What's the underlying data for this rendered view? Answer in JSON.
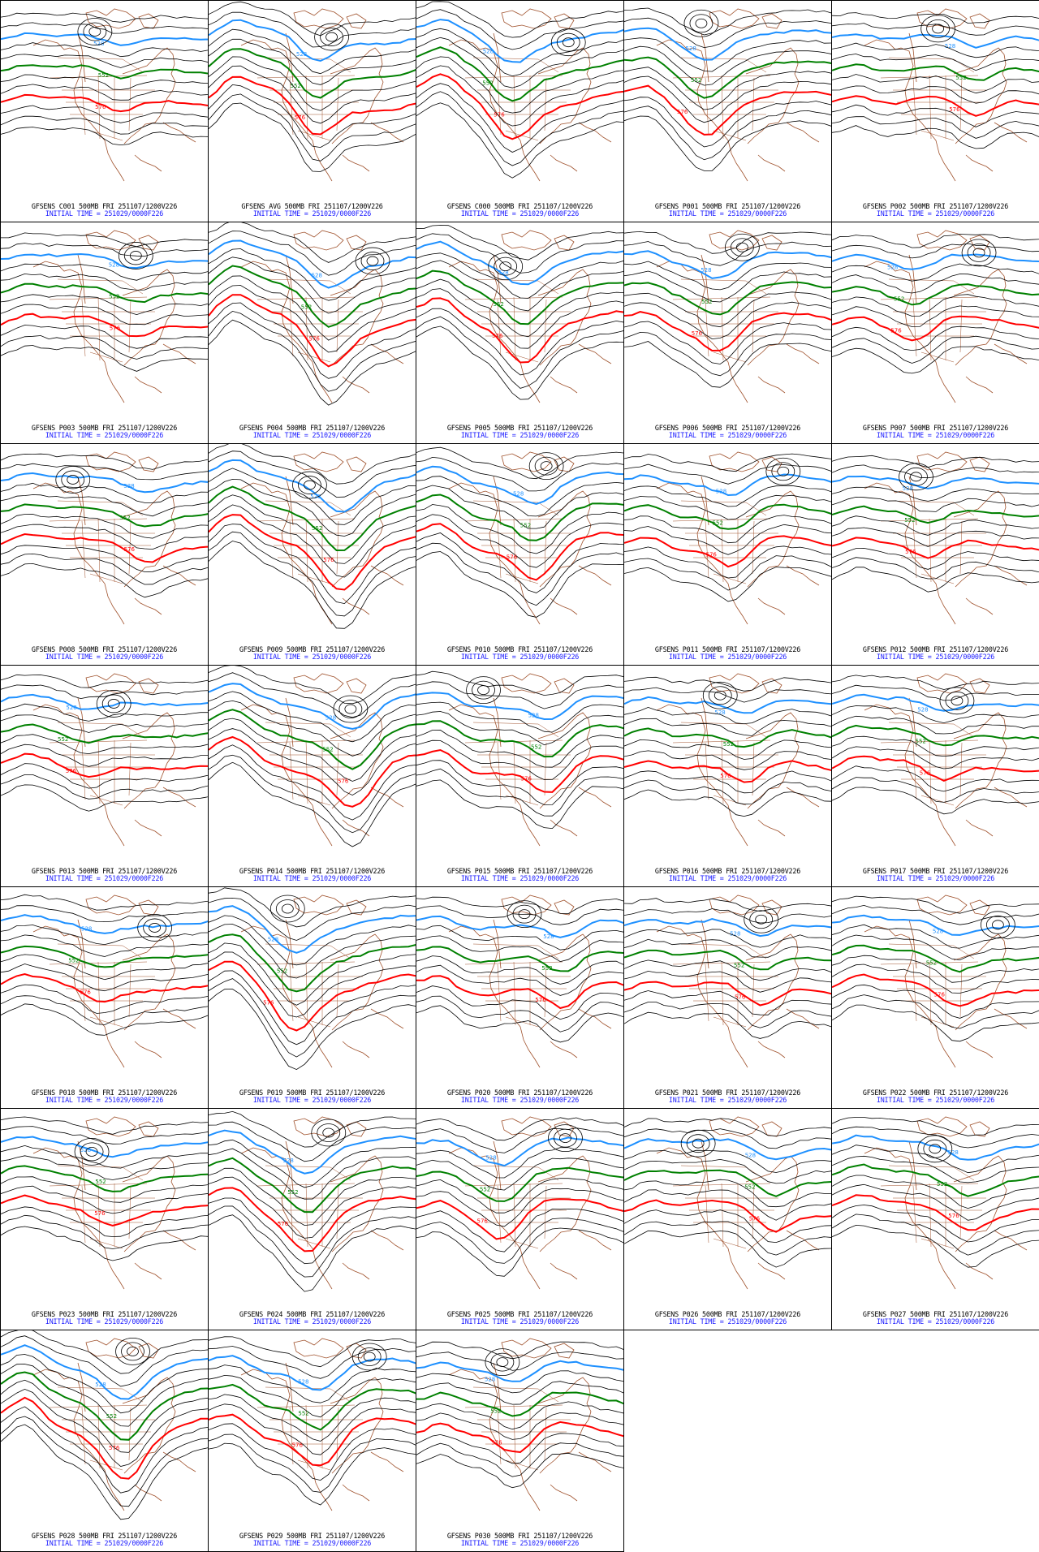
{
  "colors": {
    "contour": "#000000",
    "contour_528": "#1e90ff",
    "contour_552": "#008000",
    "contour_576": "#ff0000",
    "coast": "#a0522d",
    "caption_line1": "#000000",
    "caption_line2": "#1a1aff"
  },
  "contour_labels": {
    "blue": "528",
    "green": "552",
    "red": "576"
  },
  "icons": {
    "map": "map-icon"
  },
  "panels": [
    {
      "line1": "GFSENS C001 500MB FRI 251107/1200V226",
      "line2": "INITIAL TIME = 251029/0000F226"
    },
    {
      "line1": "GFSENS AVG 500MB FRI 251107/1200V226",
      "line2": "INITIAL TIME = 251029/0000F226"
    },
    {
      "line1": "GFSENS C000 500MB FRI 251107/1200V226",
      "line2": "INITIAL TIME = 251029/0000F226"
    },
    {
      "line1": "GFSENS P001 500MB FRI 251107/1200V226",
      "line2": "INITIAL TIME = 251029/0000F226"
    },
    {
      "line1": "GFSENS P002 500MB FRI 251107/1200V226",
      "line2": "INITIAL TIME = 251029/0000F226"
    },
    {
      "line1": "GFSENS P003 500MB FRI 251107/1200V226",
      "line2": "INITIAL TIME = 251029/0000F226"
    },
    {
      "line1": "GFSENS P004 500MB FRI 251107/1200V226",
      "line2": "INITIAL TIME = 251029/0000F226"
    },
    {
      "line1": "GFSENS P005 500MB FRI 251107/1200V226",
      "line2": "INITIAL TIME = 251029/0000F226"
    },
    {
      "line1": "GFSENS P006 500MB FRI 251107/1200V226",
      "line2": "INITIAL TIME = 251029/0000F226"
    },
    {
      "line1": "GFSENS P007 500MB FRI 251107/1200V226",
      "line2": "INITIAL TIME = 251029/0000F226"
    },
    {
      "line1": "GFSENS P008 500MB FRI 251107/1200V226",
      "line2": "INITIAL TIME = 251029/0000F226"
    },
    {
      "line1": "GFSENS P009 500MB FRI 251107/1200V226",
      "line2": "INITIAL TIME = 251029/0000F226"
    },
    {
      "line1": "GFSENS P010 500MB FRI 251107/1200V226",
      "line2": "INITIAL TIME = 251029/0000F226"
    },
    {
      "line1": "GFSENS P011 500MB FRI 251107/1200V226",
      "line2": "INITIAL TIME = 251029/0000F226"
    },
    {
      "line1": "GFSENS P012 500MB FRI 251107/1200V226",
      "line2": "INITIAL TIME = 251029/0000F226"
    },
    {
      "line1": "GFSENS P013 500MB FRI 251107/1200V226",
      "line2": "INITIAL TIME = 251029/0000F226"
    },
    {
      "line1": "GFSENS P014 500MB FRI 251107/1200V226",
      "line2": "INITIAL TIME = 251029/0000F226"
    },
    {
      "line1": "GFSENS P015 500MB FRI 251107/1200V226",
      "line2": "INITIAL TIME = 251029/0000F226"
    },
    {
      "line1": "GFSENS P016 500MB FRI 251107/1200V226",
      "line2": "INITIAL TIME = 251029/0000F226"
    },
    {
      "line1": "GFSENS P017 500MB FRI 251107/1200V226",
      "line2": "INITIAL TIME = 251029/0000F226"
    },
    {
      "line1": "GFSENS P018 500MB FRI 251107/1200V226",
      "line2": "INITIAL TIME = 251029/0000F226"
    },
    {
      "line1": "GFSENS P019 500MB FRI 251107/1200V226",
      "line2": "INITIAL TIME = 251029/0000F226"
    },
    {
      "line1": "GFSENS P020 500MB FRI 251107/1200V226",
      "line2": "INITIAL TIME = 251029/0000F226"
    },
    {
      "line1": "GFSENS P021 500MB FRI 251107/1200V226",
      "line2": "INITIAL TIME = 251029/0000F226"
    },
    {
      "line1": "GFSENS P022 500MB FRI 251107/1200V226",
      "line2": "INITIAL TIME = 251029/0000F226"
    },
    {
      "line1": "GFSENS P023 500MB FRI 251107/1200V226",
      "line2": "INITIAL TIME = 251029/0000F226"
    },
    {
      "line1": "GFSENS P024 500MB FRI 251107/1200V226",
      "line2": "INITIAL TIME = 251029/0000F226"
    },
    {
      "line1": "GFSENS P025 500MB FRI 251107/1200V226",
      "line2": "INITIAL TIME = 251029/0000F226"
    },
    {
      "line1": "GFSENS P026 500MB FRI 251107/1200V226",
      "line2": "INITIAL TIME = 251029/0000F226"
    },
    {
      "line1": "GFSENS P027 500MB FRI 251107/1200V226",
      "line2": "INITIAL TIME = 251029/0000F226"
    },
    {
      "line1": "GFSENS P028 500MB FRI 251107/1200V226",
      "line2": "INITIAL TIME = 251029/0000F226"
    },
    {
      "line1": "GFSENS P029 500MB FRI 251107/1200V226",
      "line2": "INITIAL TIME = 251029/0000F226"
    },
    {
      "line1": "GFSENS P030 500MB FRI 251107/1200V226",
      "line2": "INITIAL TIME = 251029/0000F226"
    }
  ]
}
